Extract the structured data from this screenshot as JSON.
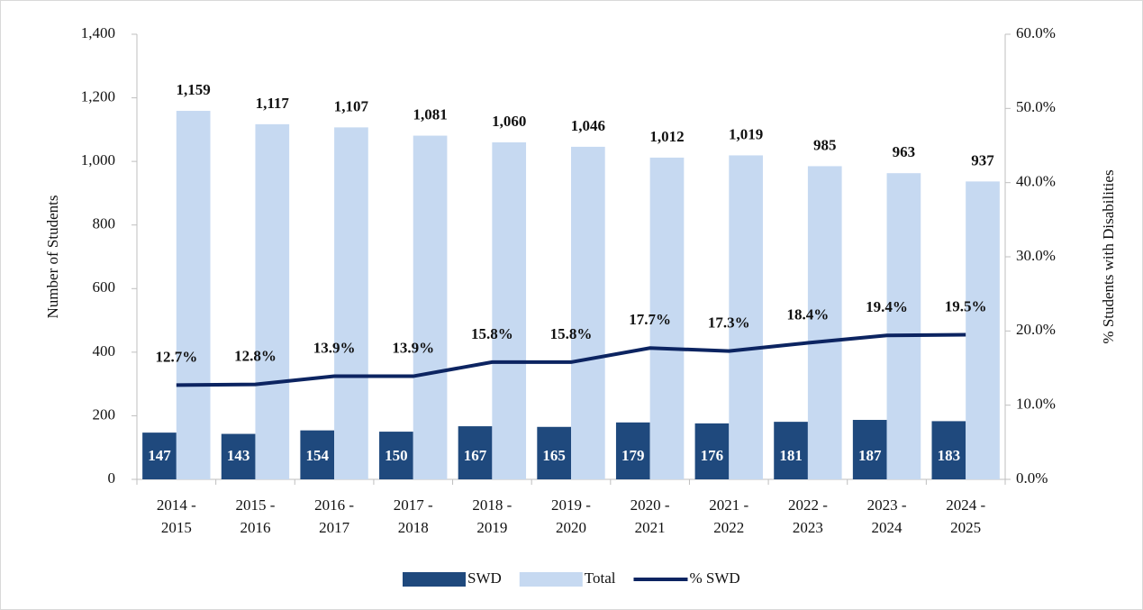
{
  "chart_data": {
    "type": "bar_line",
    "y_axis_label": "Number of Students",
    "y2_axis_label": "% Students with Disabilities",
    "categories": [
      "2014 - 2015",
      "2015 - 2016",
      "2016 - 2017",
      "2017 - 2018",
      "2018 - 2019",
      "2019 - 2020",
      "2020 - 2021",
      "2021 - 2022",
      "2022 - 2023",
      "2023 - 2024",
      "2024 - 2025"
    ],
    "series": [
      {
        "name": "SWD",
        "type": "bar",
        "color": "#1f497d",
        "values": [
          147,
          143,
          154,
          150,
          167,
          165,
          179,
          176,
          181,
          187,
          183
        ]
      },
      {
        "name": "Total",
        "type": "bar",
        "color": "#c6d9f1",
        "values": [
          1159,
          1117,
          1107,
          1081,
          1060,
          1046,
          1012,
          1019,
          985,
          963,
          937
        ],
        "value_labels": [
          "1,159",
          "1,117",
          "1,107",
          "1,081",
          "1,060",
          "1,046",
          "1,012",
          "1,019",
          "985",
          "963",
          "937"
        ]
      },
      {
        "name": "% SWD",
        "type": "line",
        "axis": "y2",
        "color": "#0c2461",
        "values": [
          12.7,
          12.8,
          13.9,
          13.9,
          15.8,
          15.8,
          17.7,
          17.3,
          18.4,
          19.4,
          19.5
        ],
        "value_labels": [
          "12.7%",
          "12.8%",
          "13.9%",
          "13.9%",
          "15.8%",
          "15.8%",
          "17.7%",
          "17.3%",
          "18.4%",
          "19.4%",
          "19.5%"
        ]
      }
    ],
    "ylim": [
      0,
      1400
    ],
    "yticks": [
      0,
      200,
      400,
      600,
      800,
      {
        "value": 1000,
        "label": "1,000"
      },
      {
        "value": 1200,
        "label": "1,200"
      },
      {
        "value": 1400,
        "label": "1,400"
      }
    ],
    "y2lim": [
      0,
      60
    ],
    "y2ticks": [
      {
        "value": 0,
        "label": "0.0%"
      },
      {
        "value": 10,
        "label": "10.0%"
      },
      {
        "value": 20,
        "label": "20.0%"
      },
      {
        "value": 30,
        "label": "30.0%"
      },
      {
        "value": 40,
        "label": "40.0%"
      },
      {
        "value": 50,
        "label": "50.0%"
      },
      {
        "value": 60,
        "label": "60.0%"
      }
    ],
    "legend": "bottom"
  }
}
